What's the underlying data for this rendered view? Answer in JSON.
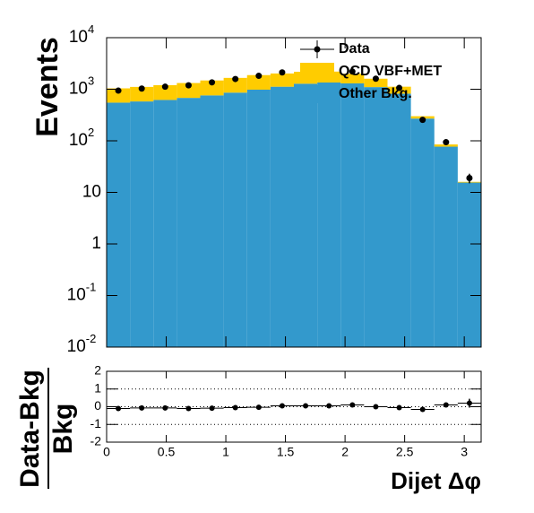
{
  "chart_data": [
    {
      "type": "histogram",
      "ylabel": "Events",
      "bins": [
        0,
        0.1963,
        0.3927,
        0.589,
        0.7854,
        0.9817,
        1.1781,
        1.3744,
        1.5708,
        1.7671,
        1.9635,
        2.1598,
        2.3562,
        2.5525,
        2.7489,
        2.9452,
        3.1416
      ],
      "stacked": true,
      "log_y": true,
      "series": [
        {
          "name": "Other Bkg.",
          "color": "#3399cc",
          "style": "fill",
          "values": [
            550,
            580,
            620,
            680,
            760,
            860,
            980,
            1120,
            1280,
            1350,
            1300,
            1100,
            820,
            270,
            77,
            15.5
          ]
        },
        {
          "name": "QCD VBF+MET",
          "color": "#ffcc00",
          "style": "fill",
          "values": [
            490,
            530,
            580,
            640,
            720,
            800,
            900,
            900,
            900,
            850,
            700,
            500,
            300,
            30,
            8,
            0.5
          ]
        },
        {
          "name": "Data",
          "color": "#000000",
          "style": "points",
          "values": [
            940,
            1030,
            1120,
            1190,
            1360,
            1580,
            1820,
            2120,
            2290,
            2310,
            2200,
            1600,
            1060,
            255,
            94,
            19
          ],
          "errors": [
            31,
            32,
            33,
            34,
            37,
            40,
            43,
            46,
            48,
            48,
            47,
            40,
            33,
            16,
            10,
            4
          ]
        }
      ],
      "xlim": [
        0,
        3.1416
      ],
      "xticks": [
        0,
        0.5,
        1,
        1.5,
        2,
        2.5,
        3
      ],
      "ylim": [
        0.01,
        10000
      ],
      "yticks": [
        {
          "value": 0.01,
          "label": "10",
          "exponent": "-2"
        },
        {
          "value": 0.1,
          "label": "10",
          "exponent": "-1"
        },
        1,
        10,
        {
          "value": 100,
          "label": "10",
          "exponent": "2"
        },
        {
          "value": 1000,
          "label": "10",
          "exponent": "3"
        },
        {
          "value": 10000,
          "label": "10",
          "exponent": "4"
        }
      ],
      "legend": "top-right"
    },
    {
      "type": "scatter",
      "xlabel": "Dijet  Δφ",
      "ylabel": {
        "numerator": "Data-Bkg",
        "denominator": "Bkg"
      },
      "bins": [
        0,
        0.1963,
        0.3927,
        0.589,
        0.7854,
        0.9817,
        1.1781,
        1.3744,
        1.5708,
        1.7671,
        1.9635,
        2.1598,
        2.3562,
        2.5525,
        2.7489,
        2.9452,
        3.1416
      ],
      "color": "#000000",
      "values": [
        -0.1,
        -0.07,
        -0.07,
        -0.1,
        -0.08,
        -0.05,
        -0.03,
        0.05,
        0.05,
        0.05,
        0.1,
        0.0,
        -0.05,
        -0.15,
        0.1,
        0.2
      ],
      "errors": [
        0.03,
        0.03,
        0.03,
        0.03,
        0.03,
        0.03,
        0.03,
        0.03,
        0.03,
        0.03,
        0.03,
        0.03,
        0.04,
        0.06,
        0.12,
        0.25
      ],
      "xlim": [
        0,
        3.1416
      ],
      "xticks": [
        0,
        0.5,
        1,
        1.5,
        2,
        2.5,
        3
      ],
      "ylim": [
        -2,
        2
      ],
      "yticks": [
        -2,
        -1,
        0,
        1,
        2
      ],
      "grid": "dotted"
    }
  ]
}
